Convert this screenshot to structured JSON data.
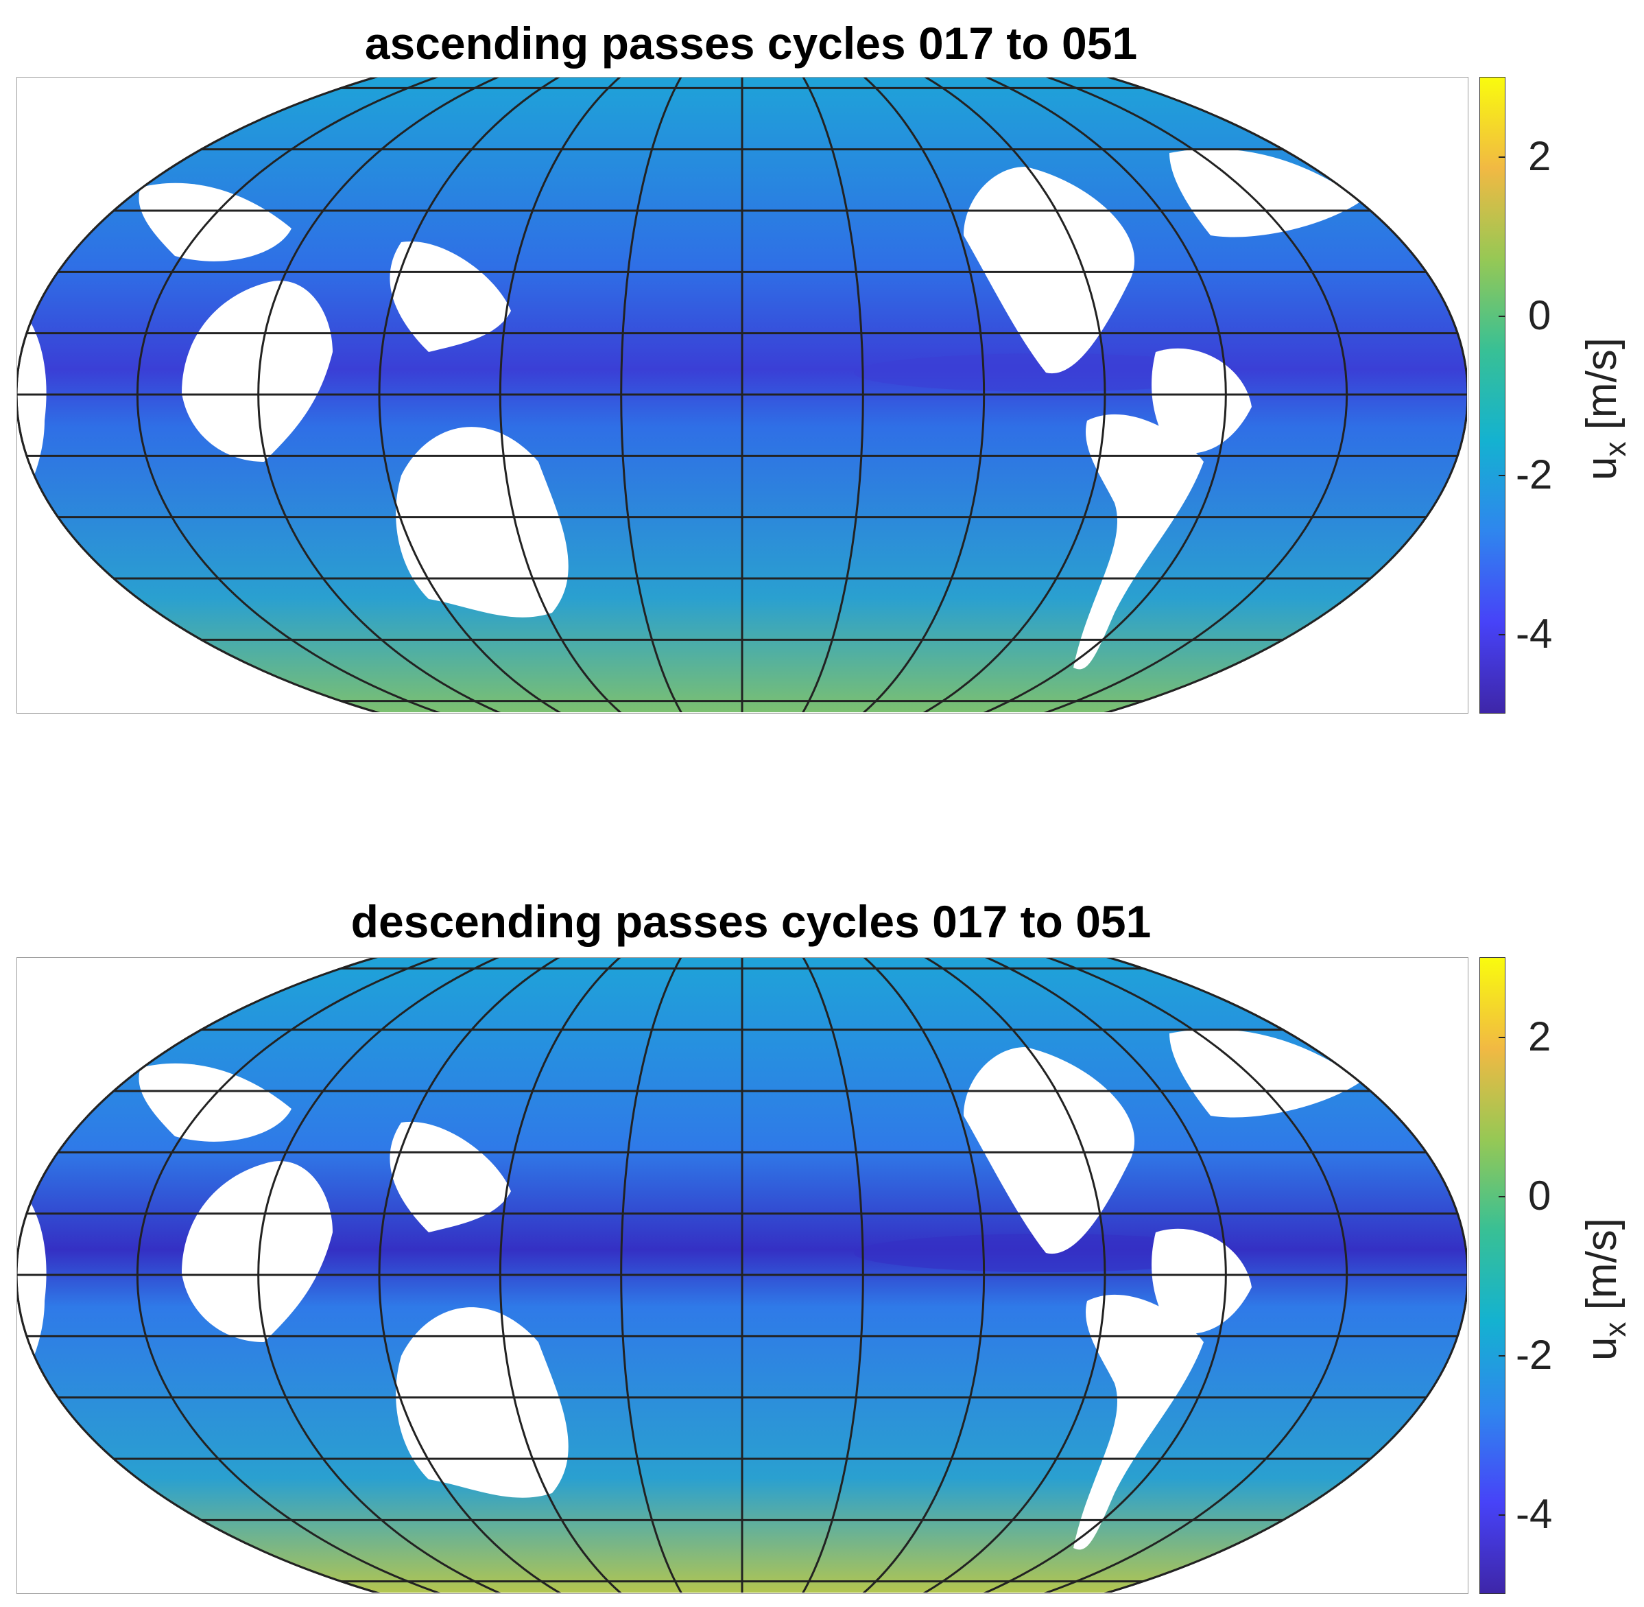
{
  "panels": [
    {
      "title": "ascending passes cycles 017 to 051",
      "colorbar": {
        "ticks": [
          "2",
          "0",
          "-2",
          "-4"
        ],
        "label_main": "u",
        "label_sub": "x",
        "label_unit": " [m/s]"
      },
      "ocean_base": "#2f6fe6",
      "equator_band": "#3a3fd6",
      "south_band": "#7cc070"
    },
    {
      "title": "descending passes cycles 017 to 051",
      "colorbar": {
        "ticks": [
          "2",
          "0",
          "-2",
          "-4"
        ],
        "label_main": "u",
        "label_sub": "x",
        "label_unit": " [m/s]"
      },
      "ocean_base": "#2f7ae8",
      "equator_band": "#3430c4",
      "south_band": "#b3c650"
    }
  ],
  "colormap": [
    "#3e26a8",
    "#4743f8",
    "#2f86ee",
    "#14b2d0",
    "#38c095",
    "#96c855",
    "#f1b943",
    "#f9fb0e"
  ],
  "colorbar_range": {
    "min": -5,
    "max": 3
  }
}
